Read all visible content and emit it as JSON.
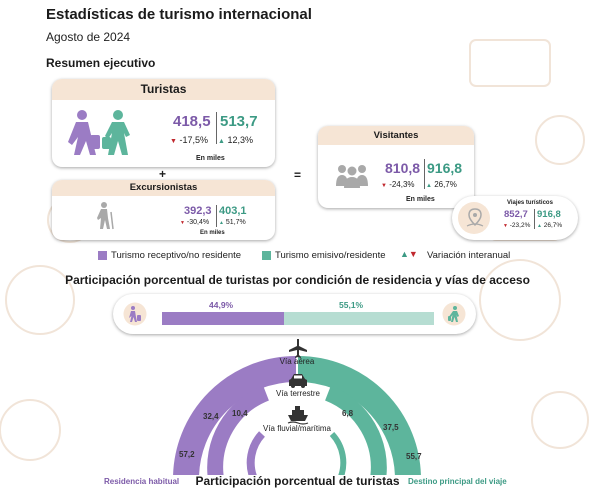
{
  "header": {
    "title": "Estadísticas de turismo internacional",
    "subtitle": "Agosto de 2024",
    "section": "Resumen ejecutivo"
  },
  "turistas": {
    "title": "Turistas",
    "receptivo": "418,5",
    "receptivo_var": "-17,5%",
    "emisivo": "513,7",
    "emisivo_var": "12,3%",
    "unit": "En miles"
  },
  "plus_sign": "+",
  "equals_sign": "=",
  "excursionistas": {
    "title": "Excursionistas",
    "receptivo": "392,3",
    "receptivo_var": "-30,4%",
    "emisivo": "403,1",
    "emisivo_var": "51,7%",
    "unit": "En miles"
  },
  "visitantes": {
    "title": "Visitantes",
    "receptivo": "810,8",
    "receptivo_var": "-24,3%",
    "emisivo": "916,8",
    "emisivo_var": "26,7%",
    "unit": "En miles"
  },
  "viajes": {
    "title": "Viajes turísticos",
    "receptivo": "852,7",
    "receptivo_var": "-23,2%",
    "emisivo": "916,8",
    "emisivo_var": "26,7%"
  },
  "legend": {
    "receptivo": "Turismo receptivo/no residente",
    "emisivo": "Turismo emisivo/residente",
    "variacion": "Variación interanual"
  },
  "colors": {
    "purple": "#9b7cc4",
    "teal": "#5db59c",
    "purple_text": "#7c5aa8",
    "teal_text": "#3c9a84",
    "red": "#c0282e"
  },
  "participacion": {
    "title": "Participación porcentual de turistas por condición de residencia y vías de acceso",
    "receptivo_pct": "44,9%",
    "emisivo_pct": "55,1%",
    "receptivo_share": 44.9,
    "emisivo_share": 55.1
  },
  "vias": {
    "aerea": "Vía aérea",
    "terrestre": "Vía terrestre",
    "fluvial": "Vía fluvial/marítima"
  },
  "arcs": {
    "left_outer": "57,2",
    "left_middle": "32,4",
    "left_inner": "10,4",
    "right_inner": "6,8",
    "right_middle": "37,5",
    "right_outer": "55,7"
  },
  "footer": {
    "left_label": "Residencia habitual",
    "center_title": "Participación porcentual de turistas",
    "right_label": "Destino principal del viaje"
  },
  "icons": {
    "tourist_pair": "travellers-icon",
    "group": "people-group-icon",
    "hiker": "hiker-icon",
    "map_pin": "map-pin-icon",
    "plane": "airplane-icon",
    "car": "car-icon",
    "ship": "ship-icon"
  }
}
